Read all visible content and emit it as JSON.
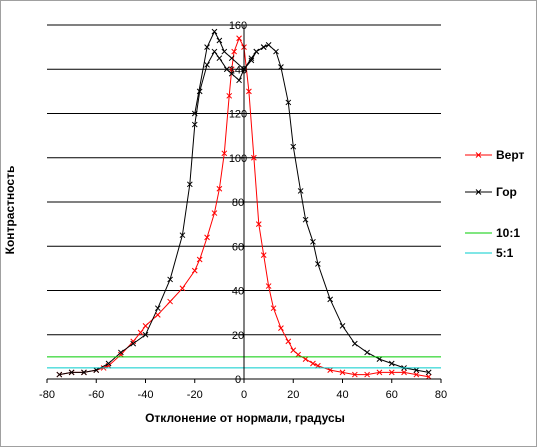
{
  "chart_data": {
    "type": "line",
    "title": "",
    "xlabel": "Отклонение от нормали, градусы",
    "ylabel": "Контрастность",
    "xlim": [
      -80,
      80
    ],
    "ylim": [
      0,
      160
    ],
    "xticks": [
      -80,
      -60,
      -40,
      -20,
      0,
      20,
      40,
      60,
      80
    ],
    "yticks": [
      0,
      20,
      40,
      60,
      80,
      100,
      120,
      140,
      160
    ],
    "grid": "horizontal",
    "legend": "right",
    "series": [
      {
        "name": "Верт",
        "color": "#ff0000",
        "marker": "x",
        "points": [
          [
            -75,
            2
          ],
          [
            -70,
            3
          ],
          [
            -65,
            3
          ],
          [
            -60,
            4
          ],
          [
            -57,
            5
          ],
          [
            -55,
            6
          ],
          [
            -50,
            11
          ],
          [
            -45,
            17
          ],
          [
            -42,
            21
          ],
          [
            -40,
            24
          ],
          [
            -35,
            29
          ],
          [
            -30,
            35
          ],
          [
            -25,
            41
          ],
          [
            -20,
            49
          ],
          [
            -18,
            54
          ],
          [
            -15,
            64
          ],
          [
            -12,
            75
          ],
          [
            -10,
            86
          ],
          [
            -8,
            102
          ],
          [
            -6,
            128
          ],
          [
            -5,
            140
          ],
          [
            -4,
            148
          ],
          [
            -2,
            154
          ],
          [
            0,
            150
          ],
          [
            2,
            130
          ],
          [
            4,
            100
          ],
          [
            6,
            70
          ],
          [
            8,
            56
          ],
          [
            10,
            42
          ],
          [
            12,
            32
          ],
          [
            15,
            23
          ],
          [
            18,
            17
          ],
          [
            20,
            13
          ],
          [
            22,
            11
          ],
          [
            25,
            9
          ],
          [
            28,
            7
          ],
          [
            30,
            6
          ],
          [
            35,
            4
          ],
          [
            40,
            3
          ],
          [
            45,
            2
          ],
          [
            50,
            2
          ],
          [
            55,
            3
          ],
          [
            60,
            3
          ],
          [
            65,
            3
          ],
          [
            70,
            2
          ],
          [
            75,
            1
          ]
        ]
      },
      {
        "name": "Гор",
        "color": "#000000",
        "marker": "x",
        "points": [
          [
            -75,
            2
          ],
          [
            -70,
            3
          ],
          [
            -65,
            3
          ],
          [
            -60,
            4
          ],
          [
            -55,
            7
          ],
          [
            -50,
            12
          ],
          [
            -45,
            16
          ],
          [
            -40,
            20
          ],
          [
            -35,
            32
          ],
          [
            -30,
            45
          ],
          [
            -25,
            65
          ],
          [
            -22,
            88
          ],
          [
            -20,
            115
          ],
          [
            -18,
            130
          ],
          [
            -15,
            142
          ],
          [
            -12,
            148
          ],
          [
            -10,
            145
          ],
          [
            -7,
            140
          ],
          [
            -5,
            138
          ],
          [
            -2,
            135
          ],
          [
            0,
            140
          ],
          [
            3,
            145
          ],
          [
            5,
            148
          ],
          [
            8,
            150
          ],
          [
            10,
            151
          ],
          [
            13,
            148
          ],
          [
            15,
            141
          ],
          [
            18,
            125
          ],
          [
            20,
            105
          ],
          [
            23,
            85
          ],
          [
            25,
            72
          ],
          [
            28,
            62
          ],
          [
            30,
            52
          ],
          [
            35,
            36
          ],
          [
            40,
            24
          ],
          [
            45,
            16
          ],
          [
            50,
            12
          ],
          [
            55,
            9
          ],
          [
            60,
            7
          ],
          [
            65,
            5
          ],
          [
            70,
            4
          ],
          [
            75,
            3
          ]
        ]
      },
      {
        "name": "Гор",
        "color": "#000000",
        "marker": "x",
        "points": [
          [
            -20,
            120
          ],
          [
            -15,
            150
          ],
          [
            -12,
            157
          ],
          [
            -10,
            153
          ],
          [
            -8,
            148
          ],
          [
            -5,
            145
          ],
          [
            0,
            140
          ],
          [
            3,
            144
          ],
          [
            5,
            148
          ],
          [
            8,
            150
          ]
        ]
      },
      {
        "name": "10:1",
        "color": "#00cc00",
        "marker": "none",
        "points": [
          [
            -80,
            10
          ],
          [
            80,
            10
          ]
        ]
      },
      {
        "name": "5:1",
        "color": "#00cccc",
        "marker": "none",
        "points": [
          [
            -80,
            5
          ],
          [
            80,
            5
          ]
        ]
      }
    ],
    "legend_entries": [
      {
        "label": "Верт",
        "color": "#ff0000",
        "marker": "x"
      },
      {
        "label": "Гор",
        "color": "#000000",
        "marker": "x"
      },
      {
        "label": "10:1",
        "color": "#00cc00",
        "marker": "none"
      },
      {
        "label": "5:1",
        "color": "#00cccc",
        "marker": "none"
      }
    ]
  }
}
